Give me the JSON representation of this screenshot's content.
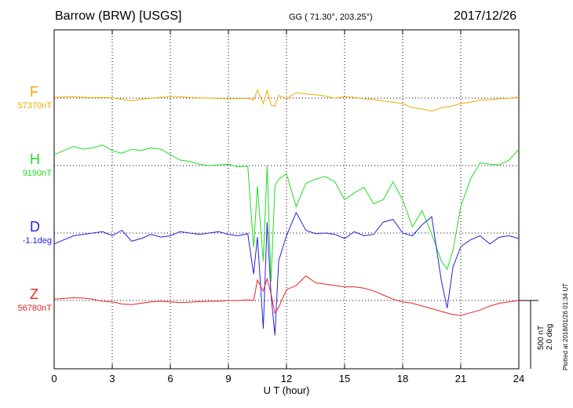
{
  "header": {
    "station": "Barrow (BRW)  [USGS]",
    "coords": "GG ( 71.30°, 203.25°)",
    "date": "2017/12/26"
  },
  "scale_bar": {
    "label_nt": "500 nT",
    "label_deg": "2.0 deg"
  },
  "plotted_note": "Plotted at 2018/01/26 01:34 UT",
  "chart_data": {
    "type": "line",
    "xlabel": "U T (hour)",
    "xlim": [
      0,
      24
    ],
    "xticks": [
      0,
      3,
      6,
      9,
      12,
      15,
      18,
      21,
      24
    ],
    "grid": true,
    "series": [
      {
        "name": "F",
        "baseline_label": "57370nT",
        "color": "#f0a800",
        "offset": 0,
        "x": [
          0,
          0.5,
          1,
          1.5,
          2,
          2.5,
          3,
          3.5,
          4,
          4.5,
          5,
          5.5,
          6,
          6.5,
          7,
          7.5,
          8,
          8.5,
          9,
          9.5,
          10,
          10.3,
          10.5,
          10.8,
          11,
          11.2,
          11.4,
          11.6,
          12,
          12.5,
          13,
          13.5,
          14,
          14.5,
          15,
          15.5,
          16,
          16.5,
          17,
          17.5,
          18,
          18.5,
          19,
          19.5,
          20,
          20.5,
          21,
          21.5,
          22,
          22.5,
          23,
          23.5,
          24
        ],
        "y": [
          5,
          8,
          10,
          6,
          3,
          4,
          3,
          -10,
          -20,
          -8,
          -2,
          6,
          12,
          10,
          4,
          2,
          0,
          -3,
          -5,
          -4,
          -2,
          -15,
          60,
          -40,
          55,
          -50,
          -60,
          20,
          -5,
          40,
          30,
          25,
          15,
          -2,
          10,
          5,
          -5,
          -10,
          -22,
          -30,
          -40,
          -70,
          -80,
          -95,
          -70,
          -60,
          -40,
          -30,
          -15,
          -12,
          -5,
          -2,
          8
        ]
      },
      {
        "name": "H",
        "baseline_label": "9190nT",
        "color": "#22dd22",
        "offset": 0,
        "x": [
          0,
          0.5,
          1,
          1.5,
          2,
          2.5,
          3,
          3.5,
          4,
          4.5,
          5,
          5.5,
          6,
          6.5,
          7,
          7.5,
          8,
          8.5,
          9,
          9.5,
          10,
          10.3,
          10.5,
          10.8,
          11,
          11.2,
          11.4,
          11.6,
          12,
          12.5,
          13,
          13.5,
          14,
          14.5,
          15,
          15.5,
          16,
          16.5,
          17,
          17.5,
          18,
          18.5,
          19,
          19.5,
          20,
          20.3,
          20.6,
          21,
          21.5,
          22,
          22.5,
          23,
          23.5,
          24
        ],
        "y": [
          80,
          110,
          140,
          120,
          130,
          150,
          110,
          90,
          120,
          110,
          130,
          120,
          80,
          40,
          30,
          10,
          0,
          5,
          10,
          -10,
          -5,
          -600,
          -150,
          -700,
          0,
          -850,
          -150,
          -100,
          -60,
          -300,
          -130,
          -100,
          -80,
          -120,
          -250,
          -200,
          -160,
          -280,
          -250,
          -120,
          -250,
          -450,
          -330,
          -500,
          -700,
          -760,
          -620,
          -300,
          -100,
          20,
          10,
          5,
          40,
          120
        ]
      },
      {
        "name": "D",
        "baseline_label": "-1.1deg",
        "color": "#2222dd",
        "offset": 0,
        "x": [
          0,
          0.5,
          1,
          1.5,
          2,
          2.5,
          3,
          3.5,
          4,
          4.5,
          5,
          5.5,
          6,
          6.5,
          7,
          7.5,
          8,
          8.5,
          9,
          9.5,
          10,
          10.3,
          10.5,
          10.8,
          11,
          11.2,
          11.4,
          11.6,
          12,
          12.5,
          13,
          13.5,
          14,
          14.5,
          15,
          15.5,
          16,
          16.5,
          17,
          17.5,
          18,
          18.5,
          19,
          19.5,
          20,
          20.3,
          20.6,
          21,
          21.5,
          22,
          22.5,
          23,
          23.5,
          24
        ],
        "y": [
          -80,
          -50,
          -20,
          -10,
          0,
          10,
          -20,
          20,
          -60,
          -40,
          -10,
          -30,
          -20,
          10,
          0,
          -10,
          0,
          10,
          -10,
          -20,
          -5,
          -300,
          -30,
          -700,
          80,
          -450,
          -750,
          -200,
          -20,
          150,
          20,
          -5,
          0,
          -10,
          -40,
          10,
          -20,
          -10,
          80,
          100,
          0,
          -20,
          60,
          120,
          -350,
          -550,
          -250,
          -100,
          -50,
          -20,
          -80,
          -30,
          -20,
          -40
        ]
      },
      {
        "name": "Z",
        "baseline_label": "56780nT",
        "color": "#ee2222",
        "offset": 0,
        "x": [
          0,
          0.5,
          1,
          1.5,
          2,
          2.5,
          3,
          3.5,
          4,
          4.5,
          5,
          5.5,
          6,
          6.5,
          7,
          7.5,
          8,
          8.5,
          9,
          9.5,
          10,
          10.3,
          10.5,
          10.8,
          11,
          11.2,
          11.4,
          11.6,
          12,
          12.5,
          13,
          13.5,
          14,
          14.5,
          15,
          15.5,
          16,
          16.5,
          17,
          17.5,
          18,
          18.5,
          19,
          19.5,
          20,
          20.5,
          21,
          21.5,
          22,
          22.5,
          23,
          23.5,
          24
        ],
        "y": [
          10,
          15,
          20,
          18,
          10,
          -5,
          -10,
          -25,
          -30,
          -20,
          -10,
          -5,
          -10,
          -15,
          -12,
          -8,
          -5,
          -5,
          0,
          0,
          5,
          0,
          150,
          70,
          160,
          50,
          -90,
          -50,
          80,
          110,
          180,
          130,
          120,
          110,
          100,
          100,
          90,
          70,
          40,
          10,
          -10,
          -20,
          -40,
          -60,
          -80,
          -100,
          -110,
          -90,
          -70,
          -40,
          -20,
          -10,
          0
        ]
      }
    ]
  }
}
